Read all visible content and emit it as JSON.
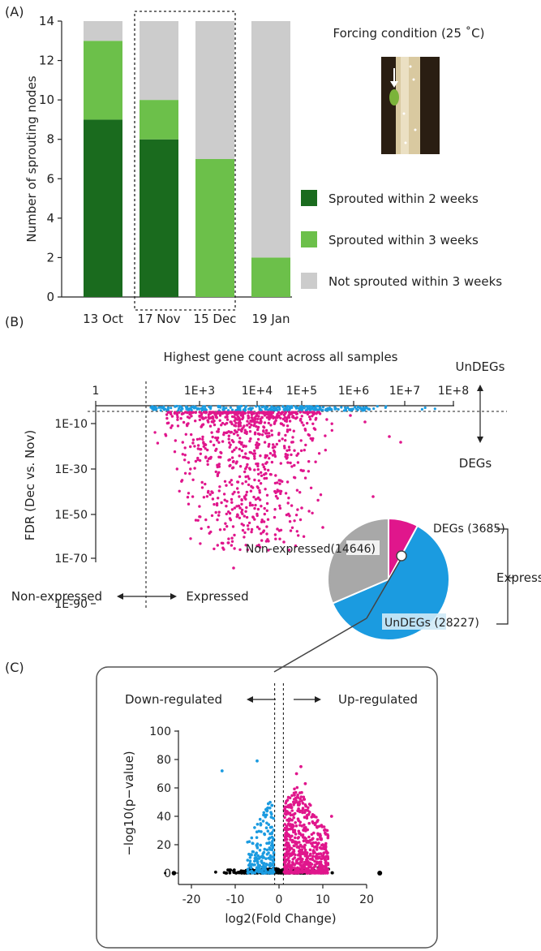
{
  "chart_data": [
    {
      "panel": "A",
      "panel_label": "(A)",
      "type": "bar",
      "stacked": true,
      "categories": [
        "13 Oct",
        "17 Nov",
        "15 Dec",
        "19 Jan"
      ],
      "series": [
        {
          "name": "Sprouted within 2 weeks",
          "color": "#1a6b1e",
          "values": [
            9,
            8,
            0,
            0
          ]
        },
        {
          "name": "Sprouted within 3 weeks",
          "color": "#6cc04a",
          "values": [
            4,
            2,
            7,
            2
          ]
        },
        {
          "name": "Not sprouted within 3 weeks",
          "color": "#cccccc",
          "values": [
            1,
            4,
            7,
            12
          ]
        }
      ],
      "ylabel": "Number of sprouting nodes",
      "ylim": [
        0,
        14
      ],
      "yticks": [
        "0",
        "2",
        "4",
        "6",
        "8",
        "10",
        "12",
        "14"
      ],
      "annotation": "Forcing condition (25 ˚C)",
      "highlight": [
        "17 Nov",
        "15 Dec"
      ]
    },
    {
      "panel": "B",
      "panel_label": "(B)",
      "type": "scatter",
      "title": "Highest gene count across all samples",
      "xticks": [
        "1",
        "1E+3",
        "1E+4",
        "1E+5",
        "1E+6",
        "1E+7",
        "1E+8"
      ],
      "ylabel": "FDR (Dec vs. Nov)",
      "yticks": [
        "1E-10",
        "1E-30",
        "1E-50",
        "1E-70",
        "1E-90"
      ],
      "regions": {
        "undegs": "UnDEGs",
        "degs": "DEGs",
        "non_expressed": "Non-expressed",
        "expressed": "Expressed"
      },
      "colors": {
        "degs": "#e0168c",
        "undegs": "#1b9be0"
      }
    },
    {
      "panel": "B-pie",
      "type": "pie",
      "slices": [
        {
          "name": "DEGs",
          "value": 3685,
          "label": "DEGs (3685)",
          "color": "#e0168c"
        },
        {
          "name": "UnDEGs",
          "value": 28227,
          "label": "UnDEGs (28227)",
          "color": "#1b9be0"
        },
        {
          "name": "Non-expressed",
          "value": 14646,
          "label": "Non-expressed(14646)",
          "color": "#a8a8a8"
        }
      ],
      "group_label": "Expressed"
    },
    {
      "panel": "C",
      "panel_label": "(C)",
      "type": "scatter",
      "subtype": "volcano",
      "xlabel": "log2(Fold Change)",
      "ylabel": "−log10(p−value)",
      "xlim": [
        -27,
        25
      ],
      "ylim": [
        0,
        100
      ],
      "xticks": [
        -20,
        -10,
        0,
        10,
        20
      ],
      "yticks": [
        0,
        20,
        40,
        60,
        80,
        100
      ],
      "threshold_lines": [
        -1,
        1
      ],
      "down_label": "Down-regulated",
      "up_label": "Up-regulated",
      "colors": {
        "down": "#1b9be0",
        "up": "#e0168c",
        "ns": "#000000"
      }
    }
  ]
}
